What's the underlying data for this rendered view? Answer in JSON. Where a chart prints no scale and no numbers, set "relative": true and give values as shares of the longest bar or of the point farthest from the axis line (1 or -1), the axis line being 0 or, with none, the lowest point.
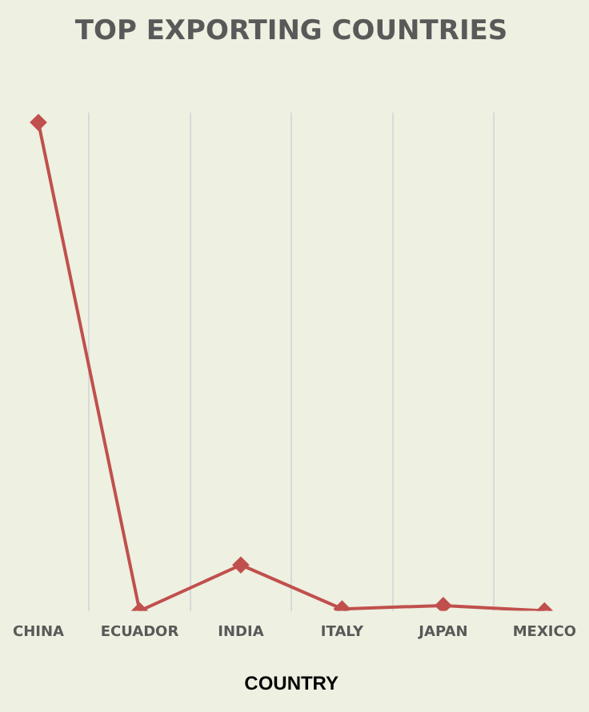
{
  "chart_data": {
    "type": "line",
    "title": "TOP EXPORTING COUNTRIES",
    "xlabel": "COUNTRY",
    "categories": [
      "CHINA",
      "ECUADOR",
      "INDIA",
      "ITALY",
      "JAPAN",
      "MEXICO"
    ],
    "series": [
      {
        "color": "#c0504d",
        "values": [
          1,
          0,
          0.094,
          0.004,
          0.011,
          0
        ]
      }
    ],
    "relative": true,
    "grid": "x",
    "legend": false,
    "marker": "diamond",
    "line_style": "solid"
  }
}
